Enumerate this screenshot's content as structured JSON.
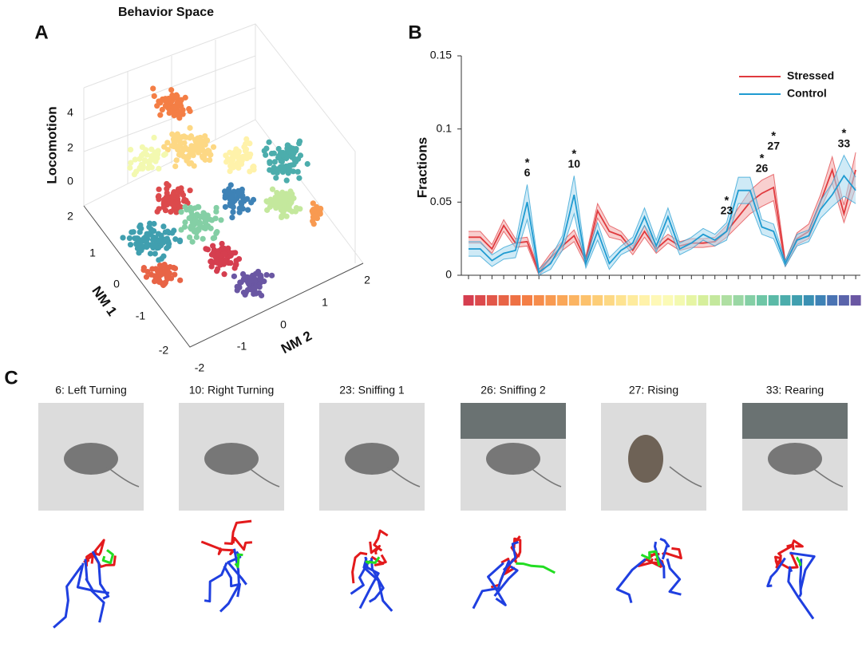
{
  "panel_labels": [
    "A",
    "B",
    "C"
  ],
  "behavior_space": {
    "title": "Behavior Space",
    "z_label": "Locomotion",
    "x_label": "NM 1",
    "y_label": "NM 2",
    "z_ticks": [
      4,
      2,
      0
    ],
    "x_ticks": [
      2,
      1,
      0,
      -1,
      -2
    ],
    "y_ticks": [
      2,
      1,
      0,
      -1,
      -2
    ]
  },
  "chart_data": {
    "type": "line",
    "y_label": "Fractions",
    "categories": [
      null,
      null,
      null,
      null,
      null,
      null,
      null,
      null,
      null,
      null,
      null,
      null,
      null,
      null,
      null,
      null,
      null,
      null,
      null,
      null,
      null,
      null,
      null,
      null,
      null,
      null,
      null,
      null,
      null,
      null,
      null,
      null,
      null,
      null
    ],
    "series": [
      {
        "name": "Stressed",
        "color": "#e03a3e",
        "band_color": "#f2a7a8",
        "values": [
          0.026,
          0.026,
          0.018,
          0.034,
          0.022,
          0.023,
          0.002,
          0.012,
          0.02,
          0.027,
          0.01,
          0.044,
          0.03,
          0.027,
          0.017,
          0.03,
          0.018,
          0.025,
          0.02,
          0.022,
          0.022,
          0.023,
          0.03,
          0.04,
          0.05,
          0.056,
          0.06,
          0.008,
          0.025,
          0.03,
          0.05,
          0.072,
          0.042,
          0.072
        ],
        "errors": [
          0.004,
          0.004,
          0.003,
          0.004,
          0.003,
          0.003,
          0.002,
          0.003,
          0.003,
          0.004,
          0.003,
          0.005,
          0.004,
          0.003,
          0.003,
          0.004,
          0.003,
          0.003,
          0.003,
          0.003,
          0.003,
          0.003,
          0.004,
          0.006,
          0.008,
          0.009,
          0.009,
          0.002,
          0.004,
          0.005,
          0.005,
          0.009,
          0.006,
          0.012
        ]
      },
      {
        "name": "Control",
        "color": "#1f9bd1",
        "band_color": "#a8d8ee",
        "values": [
          0.018,
          0.018,
          0.01,
          0.015,
          0.017,
          0.05,
          0.002,
          0.008,
          0.022,
          0.055,
          0.008,
          0.03,
          0.008,
          0.017,
          0.022,
          0.04,
          0.02,
          0.04,
          0.018,
          0.022,
          0.028,
          0.024,
          0.03,
          0.058,
          0.058,
          0.033,
          0.03,
          0.008,
          0.024,
          0.027,
          0.045,
          0.055,
          0.068,
          0.058
        ],
        "errors": [
          0.005,
          0.005,
          0.004,
          0.004,
          0.005,
          0.012,
          0.002,
          0.004,
          0.005,
          0.013,
          0.003,
          0.006,
          0.004,
          0.003,
          0.004,
          0.006,
          0.004,
          0.006,
          0.004,
          0.004,
          0.004,
          0.004,
          0.006,
          0.009,
          0.009,
          0.005,
          0.005,
          0.002,
          0.004,
          0.004,
          0.006,
          0.008,
          0.014,
          0.009
        ]
      }
    ],
    "ylim": [
      0,
      0.15
    ],
    "yticks": [
      0,
      0.05,
      0.1,
      0.15
    ],
    "legend": "top-right",
    "annotations": [
      {
        "mark": "*",
        "label": "6"
      },
      {
        "mark": "*",
        "label": "10"
      },
      {
        "mark": "*",
        "label": "23"
      },
      {
        "mark": "*",
        "label": "26"
      },
      {
        "mark": "*",
        "label": "27"
      },
      {
        "mark": "*",
        "label": "33"
      }
    ],
    "category_colors": [
      "#d53e4f",
      "#dc4a4c",
      "#e25749",
      "#e86446",
      "#ee7144",
      "#f47e45",
      "#f68c4b",
      "#f89a51",
      "#faa758",
      "#fbb462",
      "#fcc16c",
      "#fdcd77",
      "#fdd884",
      "#fee391",
      "#feeb9d",
      "#fff2aa",
      "#fef8b7",
      "#fbfab6",
      "#f3f9b0",
      "#e6f5a4",
      "#d6ef9c",
      "#c4e89d",
      "#afdfa2",
      "#9ad7a4",
      "#84cfa5",
      "#6ec6a6",
      "#5bbaa7",
      "#4cadac",
      "#409faf",
      "#3a90b3",
      "#3e82b6",
      "#4a73b3",
      "#5a64ab",
      "#6a57a3"
    ]
  },
  "behaviors": [
    "6: Left Turning",
    "10: Right Turning",
    "23: Sniffing 1",
    "26: Sniffing 2",
    "27: Rising",
    "33: Rearing"
  ]
}
